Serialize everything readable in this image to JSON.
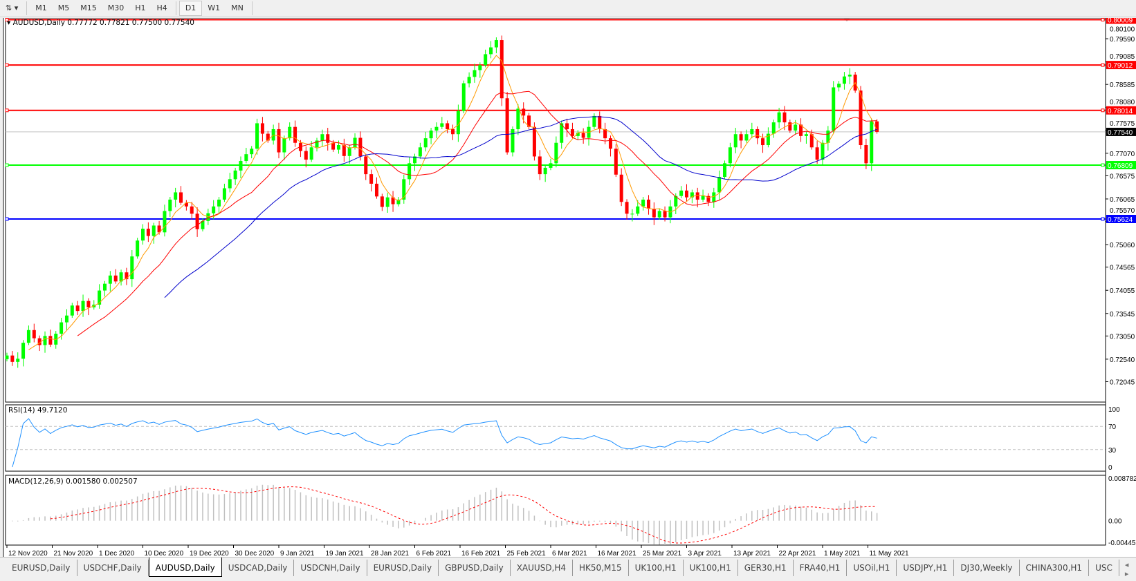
{
  "toolbar": {
    "tools_icon": "chart-tools-icon",
    "timeframes": [
      "M1",
      "M5",
      "M15",
      "M30",
      "H1",
      "H4",
      "D1",
      "W1",
      "MN"
    ],
    "active_timeframe": "D1"
  },
  "chart": {
    "symbol_header": "AUDUSD,Daily",
    "ohlc_header": "0.77772 0.77821 0.77500 0.77540",
    "rsi_label": "RSI(14) 49.7120",
    "macd_label": "MACD(12,26,9) 0.001580 0.002507"
  },
  "colors": {
    "bull": "#00ff00",
    "bear": "#ff0000",
    "ma_fast": "#ff9900",
    "ma_mid": "#ff0000",
    "ma_slow": "#0000cc",
    "rsi": "#1e90ff",
    "macd_signal": "#ff0000",
    "macd_hist": "#c0c0c0"
  },
  "chart_data": [
    {
      "type": "candlestick",
      "title": "AUDUSD,Daily",
      "ylim": [
        0.72045,
        0.801
      ],
      "y_ticks": [
        "0.80100",
        "0.79590",
        "0.79085",
        "0.78585",
        "0.78080",
        "0.77575",
        "0.77070",
        "0.76575",
        "0.76065",
        "0.75570",
        "0.75060",
        "0.74565",
        "0.74055",
        "0.73545",
        "0.73050",
        "0.72540",
        "0.72045"
      ],
      "x_tick_labels": [
        "12 Nov 2020",
        "21 Nov 2020",
        "1 Dec 2020",
        "10 Dec 2020",
        "19 Dec 2020",
        "30 Dec 2020",
        "9 Jan 2021",
        "19 Jan 2021",
        "28 Jan 2021",
        "6 Feb 2021",
        "16 Feb 2021",
        "25 Feb 2021",
        "6 Mar 2021",
        "16 Mar 2021",
        "25 Mar 2021",
        "3 Apr 2021",
        "13 Apr 2021",
        "22 Apr 2021",
        "1 May 2021",
        "11 May 2021"
      ],
      "close": [
        0.7262,
        0.7248,
        0.7255,
        0.729,
        0.7318,
        0.73,
        0.7285,
        0.7305,
        0.7286,
        0.731,
        0.7335,
        0.735,
        0.7372,
        0.736,
        0.7382,
        0.7368,
        0.7374,
        0.7405,
        0.742,
        0.7438,
        0.7425,
        0.7445,
        0.743,
        0.748,
        0.7515,
        0.7541,
        0.7525,
        0.7548,
        0.7533,
        0.758,
        0.7605,
        0.7621,
        0.7598,
        0.759,
        0.7574,
        0.754,
        0.7558,
        0.7575,
        0.759,
        0.7605,
        0.763,
        0.765,
        0.7669,
        0.769,
        0.7705,
        0.7717,
        0.7773,
        0.775,
        0.7735,
        0.776,
        0.7709,
        0.774,
        0.7765,
        0.773,
        0.7712,
        0.7693,
        0.772,
        0.7735,
        0.7749,
        0.773,
        0.7715,
        0.7725,
        0.7701,
        0.772,
        0.7741,
        0.77,
        0.7661,
        0.764,
        0.7612,
        0.7589,
        0.761,
        0.7595,
        0.7605,
        0.765,
        0.7685,
        0.77,
        0.772,
        0.774,
        0.7757,
        0.7765,
        0.7773,
        0.776,
        0.7749,
        0.78,
        0.7861,
        0.7875,
        0.789,
        0.7901,
        0.7925,
        0.794,
        0.7956,
        0.7828,
        0.7709,
        0.776,
        0.7805,
        0.779,
        0.7765,
        0.77,
        0.7661,
        0.7675,
        0.7685,
        0.773,
        0.7773,
        0.776,
        0.7745,
        0.7752,
        0.7741,
        0.7765,
        0.7789,
        0.776,
        0.774,
        0.7717,
        0.766,
        0.76,
        0.7574,
        0.7574,
        0.759,
        0.7605,
        0.7585,
        0.7566,
        0.758,
        0.7566,
        0.759,
        0.7613,
        0.7625,
        0.761,
        0.7621,
        0.7605,
        0.7613,
        0.76,
        0.7621,
        0.7655,
        0.7685,
        0.772,
        0.7749,
        0.7735,
        0.7749,
        0.776,
        0.774,
        0.7725,
        0.775,
        0.7775,
        0.7797,
        0.7775,
        0.7757,
        0.777,
        0.7745,
        0.7749,
        0.772,
        0.7693,
        0.773,
        0.7757,
        0.7852,
        0.786,
        0.7876,
        0.788,
        0.7845,
        0.7725,
        0.7685,
        0.7777,
        0.7754
      ],
      "last_candle": {
        "open": 0.77772,
        "high": 0.77821,
        "low": 0.775,
        "close": 0.7754
      },
      "horizontal_lines": [
        {
          "price": 0.80009,
          "label": "0.80009",
          "color": "#ff0000"
        },
        {
          "price": 0.79012,
          "label": "0.79012",
          "color": "#ff0000"
        },
        {
          "price": 0.78014,
          "label": "0.78014",
          "color": "#ff0000"
        },
        {
          "price": 0.76809,
          "label": "0.76809",
          "color": "#00ff00"
        },
        {
          "price": 0.75624,
          "label": "0.75624",
          "color": "#0000ff"
        }
      ],
      "current_price": {
        "price": 0.7754,
        "label": "0.77540"
      },
      "moving_averages": [
        {
          "period": 5,
          "color": "#ff9900"
        },
        {
          "period": 14,
          "color": "#ff0000"
        },
        {
          "period": 30,
          "color": "#0000cc"
        }
      ]
    },
    {
      "type": "line",
      "title": "RSI(14) 49.7120",
      "ylim": [
        0,
        100
      ],
      "y_ticks": [
        "100",
        "70",
        "30",
        "0"
      ],
      "levels": [
        70,
        30
      ]
    },
    {
      "type": "bar",
      "title": "MACD(12,26,9) 0.001580 0.002507",
      "ylim": [
        -0.004451,
        0.008782
      ],
      "y_ticks": [
        "0.008782",
        "0.00",
        "-0.004451"
      ]
    }
  ],
  "tabs": [
    "EURUSD,Daily",
    "USDCHF,Daily",
    "AUDUSD,Daily",
    "USDCAD,Daily",
    "USDCNH,Daily",
    "EURUSD,Daily",
    "GBPUSD,Daily",
    "XAUUSD,H4",
    "HK50,M15",
    "UK100,H1",
    "UK100,H1",
    "GER30,H1",
    "FRA40,H1",
    "USOil,H1",
    "USDJPY,H1",
    "DJ30,Weekly",
    "CHINA300,H1",
    "USC"
  ],
  "active_tab": "AUDUSD,Daily"
}
